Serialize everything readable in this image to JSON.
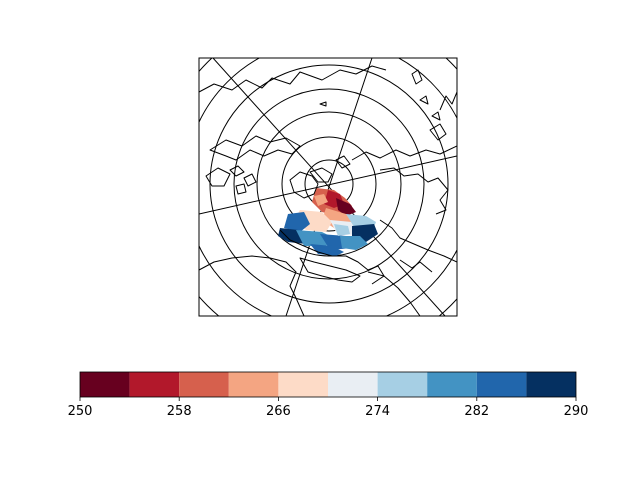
{
  "chart_data": {
    "type": "heatmap",
    "title": "",
    "xlabel": "",
    "ylabel": "",
    "map": {
      "projection": "north-polar-stereographic",
      "features": [
        "coastlines",
        "graticule"
      ],
      "field_region": "Europe / North Atlantic sector",
      "field_min_estimate": 250,
      "field_max_estimate": 290
    },
    "colorbar": {
      "orientation": "horizontal",
      "placement": "bottom",
      "cmap": "RdBu",
      "boundaries": [
        250,
        254,
        258,
        262,
        266,
        270,
        274,
        278,
        282,
        286,
        290
      ],
      "colors": [
        "#67001f",
        "#b2182b",
        "#d6604d",
        "#f4a582",
        "#fddbc7",
        "#e9eef3",
        "#a6cfe4",
        "#4393c3",
        "#2166ac",
        "#053061"
      ],
      "tick_labels": [
        "250",
        "258",
        "266",
        "274",
        "282",
        "290"
      ]
    }
  }
}
